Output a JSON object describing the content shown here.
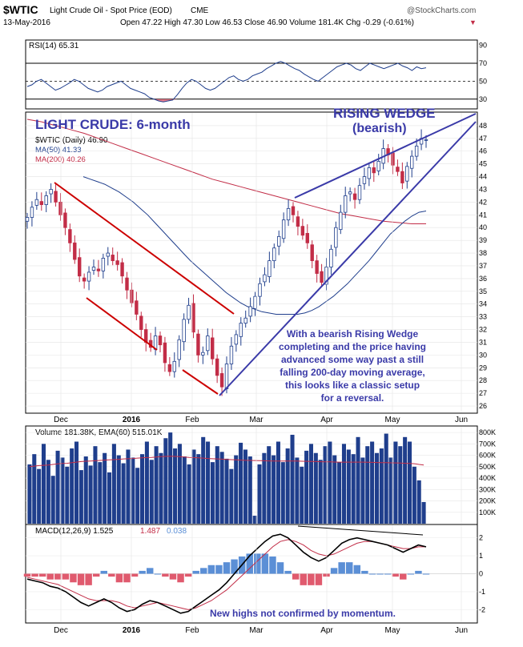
{
  "header": {
    "symbol": "$WTIC",
    "name": "Light Crude Oil - Spot Price (EOD)",
    "exchange": "CME",
    "site": "@StockCharts.com",
    "date": "13-May-2016",
    "ohlc": "Open 47.22  High 47.30  Low 46.53  Close 46.90  Volume 181.4K  Chg -0.29 (-0.61%)",
    "chg_arrow": "▼"
  },
  "chart_data": [
    {
      "type": "line",
      "title": "RSI(14) 65.31",
      "ylim": [
        20,
        95
      ],
      "ticks": [
        90,
        70,
        50,
        30
      ],
      "ref_lines": [
        70,
        50,
        30
      ],
      "series": [
        {
          "name": "RSI(14)",
          "values": [
            44,
            46,
            50,
            52,
            48,
            44,
            40,
            42,
            45,
            48,
            52,
            50,
            46,
            42,
            40,
            38,
            40,
            44,
            46,
            48,
            50,
            46,
            42,
            40,
            38,
            36,
            32,
            30,
            28,
            27,
            28,
            29,
            35,
            42,
            48,
            52,
            50,
            46,
            42,
            40,
            42,
            46,
            50,
            54,
            56,
            52,
            50,
            52,
            56,
            58,
            60,
            64,
            67,
            70,
            72,
            70,
            67,
            64,
            62,
            58,
            55,
            52,
            50,
            54,
            58,
            62,
            66,
            68,
            70,
            68,
            64,
            62,
            66,
            70,
            68,
            66,
            64,
            66,
            68,
            70,
            67,
            65,
            62,
            66,
            64,
            65
          ]
        }
      ],
      "color": "#1f3e8c"
    },
    {
      "type": "candlestick",
      "title": "$WTIC (Daily) 46.90",
      "legend": [
        "MA(50) 41.33",
        "MA(200) 40.26"
      ],
      "ylim": [
        25.5,
        49
      ],
      "ticks": [
        48,
        47,
        46,
        45,
        44,
        43,
        42,
        41,
        40,
        39,
        38,
        37,
        36,
        35,
        34,
        33,
        32,
        31,
        30,
        29,
        28,
        27,
        26
      ],
      "x_ticks": [
        "Dec",
        "2016",
        "Feb",
        "Mar",
        "Apr",
        "May",
        "Jun"
      ],
      "closes": [
        40.8,
        41.6,
        42.2,
        41.8,
        42.5,
        43.0,
        42.0,
        41.0,
        40.0,
        38.8,
        37.5,
        36.2,
        35.8,
        36.5,
        36.9,
        36.6,
        37.6,
        38.0,
        37.4,
        37.1,
        36.2,
        35.1,
        34.1,
        33.2,
        32.0,
        31.0,
        30.6,
        31.5,
        30.8,
        29.4,
        28.7,
        29.5,
        31.2,
        32.8,
        33.9,
        31.8,
        30.0,
        30.2,
        31.5,
        29.7,
        28.4,
        27.5,
        29.3,
        30.7,
        31.6,
        32.5,
        32.9,
        33.8,
        34.6,
        35.6,
        36.3,
        37.4,
        38.4,
        39.3,
        40.6,
        41.5,
        41.0,
        40.1,
        39.4,
        38.8,
        37.4,
        36.4,
        35.7,
        36.9,
        38.3,
        40.0,
        41.2,
        42.5,
        42.8,
        42.2,
        43.3,
        44.0,
        44.7,
        44.3,
        45.2,
        46.2,
        45.7,
        44.9,
        44.4,
        43.5,
        44.8,
        45.6,
        46.4,
        47.0,
        46.9
      ],
      "ma50": [
        44.0,
        43.8,
        43.6,
        43.4,
        43.1,
        42.8,
        42.4,
        42.0,
        41.5,
        41.0,
        40.4,
        39.8,
        39.2,
        38.6,
        38.0,
        37.4,
        36.9,
        36.4,
        35.9,
        35.4,
        34.9,
        34.5,
        34.1,
        33.8,
        33.6,
        33.4,
        33.3,
        33.2,
        33.2,
        33.2,
        33.2,
        33.3,
        33.5,
        33.8,
        34.2,
        34.6,
        35.1,
        35.6,
        36.2,
        36.8,
        37.4,
        38.1,
        38.8,
        39.5,
        40.0,
        40.5,
        40.9,
        41.2,
        41.3
      ],
      "ma200": [
        48.5,
        48.3,
        48.0,
        47.7,
        47.4,
        47.0,
        46.6,
        46.2,
        45.8,
        45.4,
        45.0,
        44.6,
        44.2,
        43.8,
        43.5,
        43.2,
        42.9,
        42.6,
        42.3,
        42.0,
        41.7,
        41.4,
        41.1,
        40.9,
        40.7,
        40.5,
        40.4,
        40.3,
        40.3
      ],
      "color_up": "#1f3e8c",
      "color_down": "#c22d47",
      "ma50_color": "#1f3e8c",
      "ma200_color": "#c22d47"
    },
    {
      "type": "bar",
      "title": "Volume 181.38K, EMA(60) 515.01K",
      "ylim": [
        0,
        850
      ],
      "ticks_label": [
        "800K",
        "700K",
        "600K",
        "500K",
        "400K",
        "300K",
        "200K",
        "100K"
      ],
      "ticks": [
        800,
        700,
        600,
        500,
        400,
        300,
        200,
        100
      ],
      "values": [
        520,
        610,
        480,
        700,
        560,
        420,
        640,
        580,
        500,
        660,
        720,
        470,
        590,
        510,
        680,
        540,
        620,
        450,
        700,
        600,
        530,
        650,
        580,
        490,
        610,
        720,
        560,
        680,
        620,
        750,
        800,
        660,
        700,
        590,
        520,
        650,
        610,
        760,
        720,
        540,
        680,
        630,
        570,
        480,
        600,
        710,
        650,
        590,
        70,
        520,
        620,
        680,
        600,
        720,
        540,
        660,
        780,
        580,
        500,
        640,
        700,
        620,
        560,
        680,
        720,
        600,
        540,
        700,
        650,
        610,
        760,
        580,
        680,
        720,
        620,
        660,
        790,
        580,
        720,
        680,
        760,
        720,
        500,
        380,
        190
      ],
      "ema": [
        500,
        505,
        510,
        512,
        515,
        520,
        525,
        528,
        530,
        535,
        540,
        545,
        548,
        550,
        552,
        555,
        558,
        560,
        562,
        565,
        568,
        570,
        572,
        575,
        578,
        580,
        582,
        585,
        588,
        590,
        592,
        590,
        588,
        585,
        582,
        580,
        578,
        575,
        572,
        570,
        568,
        566,
        564,
        562,
        560,
        558,
        556,
        555,
        554,
        553,
        552,
        551,
        550,
        550,
        550,
        550,
        550,
        549,
        548,
        547,
        546,
        545,
        544,
        543,
        542,
        541,
        540,
        540,
        540,
        540,
        540,
        540,
        539,
        538,
        537,
        536,
        535,
        534,
        533,
        532,
        530,
        528,
        526,
        520,
        515
      ],
      "bar_color": "#1f3e8c",
      "ema_color": "#c22d47"
    },
    {
      "type": "line",
      "title_parts": [
        "MACD(12,26,9) 1.525",
        "1.487",
        "0.038"
      ],
      "ylim": [
        -2.7,
        2.7
      ],
      "ticks": [
        2,
        1,
        0,
        -1,
        -2
      ],
      "macd": [
        -0.3,
        -0.4,
        -0.5,
        -0.7,
        -0.8,
        -1.0,
        -1.3,
        -1.6,
        -1.8,
        -1.6,
        -1.4,
        -1.6,
        -1.9,
        -2.1,
        -2.0,
        -1.7,
        -1.5,
        -1.6,
        -1.8,
        -2.0,
        -2.2,
        -2.1,
        -1.8,
        -1.5,
        -1.2,
        -0.9,
        -0.5,
        0.0,
        0.5,
        1.0,
        1.4,
        1.8,
        2.1,
        2.2,
        2.0,
        1.6,
        1.2,
        0.9,
        0.7,
        0.9,
        1.3,
        1.7,
        1.9,
        2.0,
        1.9,
        1.8,
        1.7,
        1.6,
        1.4,
        1.2,
        1.4,
        1.6,
        1.5
      ],
      "signal": [
        -0.2,
        -0.3,
        -0.4,
        -0.5,
        -0.6,
        -0.8,
        -1.0,
        -1.2,
        -1.4,
        -1.5,
        -1.5,
        -1.5,
        -1.6,
        -1.8,
        -1.9,
        -1.8,
        -1.7,
        -1.6,
        -1.7,
        -1.8,
        -1.9,
        -2.0,
        -1.9,
        -1.7,
        -1.5,
        -1.2,
        -0.9,
        -0.5,
        -0.1,
        0.3,
        0.7,
        1.1,
        1.5,
        1.8,
        1.9,
        1.8,
        1.6,
        1.3,
        1.1,
        1.0,
        1.1,
        1.3,
        1.5,
        1.7,
        1.8,
        1.8,
        1.7,
        1.6,
        1.5,
        1.4,
        1.4,
        1.5,
        1.5
      ],
      "macd_color": "#000000",
      "signal_color": "#c22d47",
      "hist_pos_color": "#5b8fd6",
      "hist_neg_color": "#e05a6e"
    }
  ],
  "annotations": {
    "light_crude": "LIGHT CRUDE: 6-month",
    "wedge_line1": "RISING WEDGE",
    "wedge_line2": "(bearish)",
    "comment": [
      "With a bearish Rising Wedge",
      "completing and the price having",
      "advanced some way past a still",
      "falling 200-day moving average,",
      "this looks like a classic setup",
      "for a reversal."
    ],
    "momentum_note": "New highs not confirmed by momentum."
  },
  "colors": {
    "annotation": "#3a3aa8",
    "trend_red": "#cc0000",
    "frame": "#000000"
  }
}
